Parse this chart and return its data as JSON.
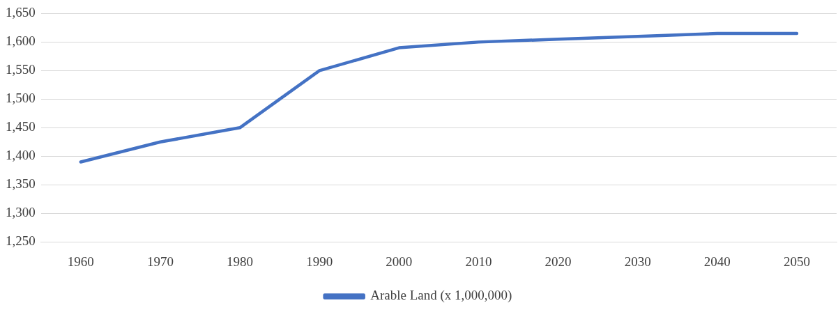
{
  "chart_data": {
    "type": "line",
    "categories": [
      "1960",
      "1970",
      "1980",
      "1990",
      "2000",
      "2010",
      "2020",
      "2030",
      "2040",
      "2050"
    ],
    "series": [
      {
        "name": "Arable Land (x 1,000,000)",
        "color": "#4472c4",
        "values": [
          1390,
          1425,
          1450,
          1550,
          1590,
          1600,
          1605,
          1610,
          1615,
          1615
        ]
      }
    ],
    "ylim": [
      1250,
      1650
    ],
    "yticks": [
      {
        "value": 1250,
        "label": "1,250"
      },
      {
        "value": 1300,
        "label": "1,300"
      },
      {
        "value": 1350,
        "label": "1,350"
      },
      {
        "value": 1400,
        "label": "1,400"
      },
      {
        "value": 1450,
        "label": "1,450"
      },
      {
        "value": 1500,
        "label": "1,500"
      },
      {
        "value": 1550,
        "label": "1,550"
      },
      {
        "value": 1600,
        "label": "1,600"
      },
      {
        "value": 1650,
        "label": "1,650"
      }
    ],
    "grid": "y",
    "legend": "bottom",
    "marker": "none",
    "line_style": "solid"
  }
}
